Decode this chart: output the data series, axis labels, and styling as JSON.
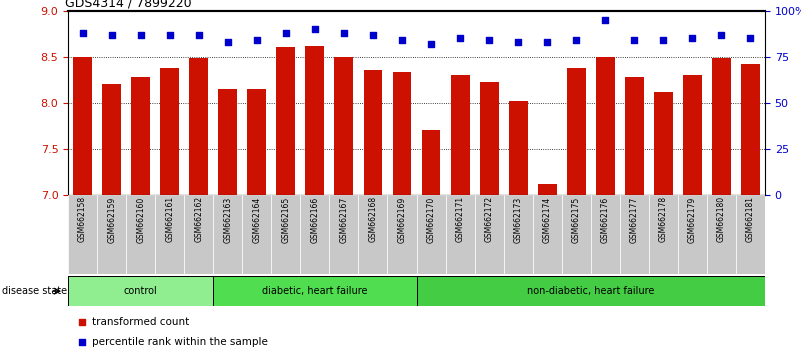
{
  "title": "GDS4314 / 7899220",
  "samples": [
    "GSM662158",
    "GSM662159",
    "GSM662160",
    "GSM662161",
    "GSM662162",
    "GSM662163",
    "GSM662164",
    "GSM662165",
    "GSM662166",
    "GSM662167",
    "GSM662168",
    "GSM662169",
    "GSM662170",
    "GSM662171",
    "GSM662172",
    "GSM662173",
    "GSM662174",
    "GSM662175",
    "GSM662176",
    "GSM662177",
    "GSM662178",
    "GSM662179",
    "GSM662180",
    "GSM662181"
  ],
  "bar_values": [
    8.5,
    8.2,
    8.28,
    8.38,
    8.48,
    8.15,
    8.15,
    8.6,
    8.62,
    8.5,
    8.35,
    8.33,
    7.7,
    8.3,
    8.22,
    8.02,
    7.12,
    8.38,
    8.5,
    8.28,
    8.12,
    8.3,
    8.48,
    8.42
  ],
  "dot_values": [
    88,
    87,
    87,
    87,
    87,
    83,
    84,
    88,
    90,
    88,
    87,
    84,
    82,
    85,
    84,
    83,
    83,
    84,
    95,
    84,
    84,
    85,
    87,
    85
  ],
  "bar_color": "#CC1100",
  "dot_color": "#0000CC",
  "ylim_left": [
    7.0,
    9.0
  ],
  "ylim_right": [
    0,
    100
  ],
  "yticks_left": [
    7.0,
    7.5,
    8.0,
    8.5,
    9.0
  ],
  "yticks_right": [
    0,
    25,
    50,
    75,
    100
  ],
  "ytick_labels_right": [
    "0",
    "25",
    "50",
    "75",
    "100%"
  ],
  "gridlines": [
    7.5,
    8.0,
    8.5
  ],
  "groups": [
    {
      "label": "control",
      "start": 0,
      "end": 4,
      "color": "#90EE90"
    },
    {
      "label": "diabetic, heart failure",
      "start": 5,
      "end": 11,
      "color": "#50DD50"
    },
    {
      "label": "non-diabetic, heart failure",
      "start": 12,
      "end": 23,
      "color": "#44CC44"
    }
  ],
  "disease_state_label": "disease state",
  "legend_items": [
    {
      "color": "#CC1100",
      "label": "transformed count"
    },
    {
      "color": "#0000CC",
      "label": "percentile rank within the sample"
    }
  ],
  "bg_color": "#C8C8C8",
  "plot_bg": "#FFFFFF"
}
